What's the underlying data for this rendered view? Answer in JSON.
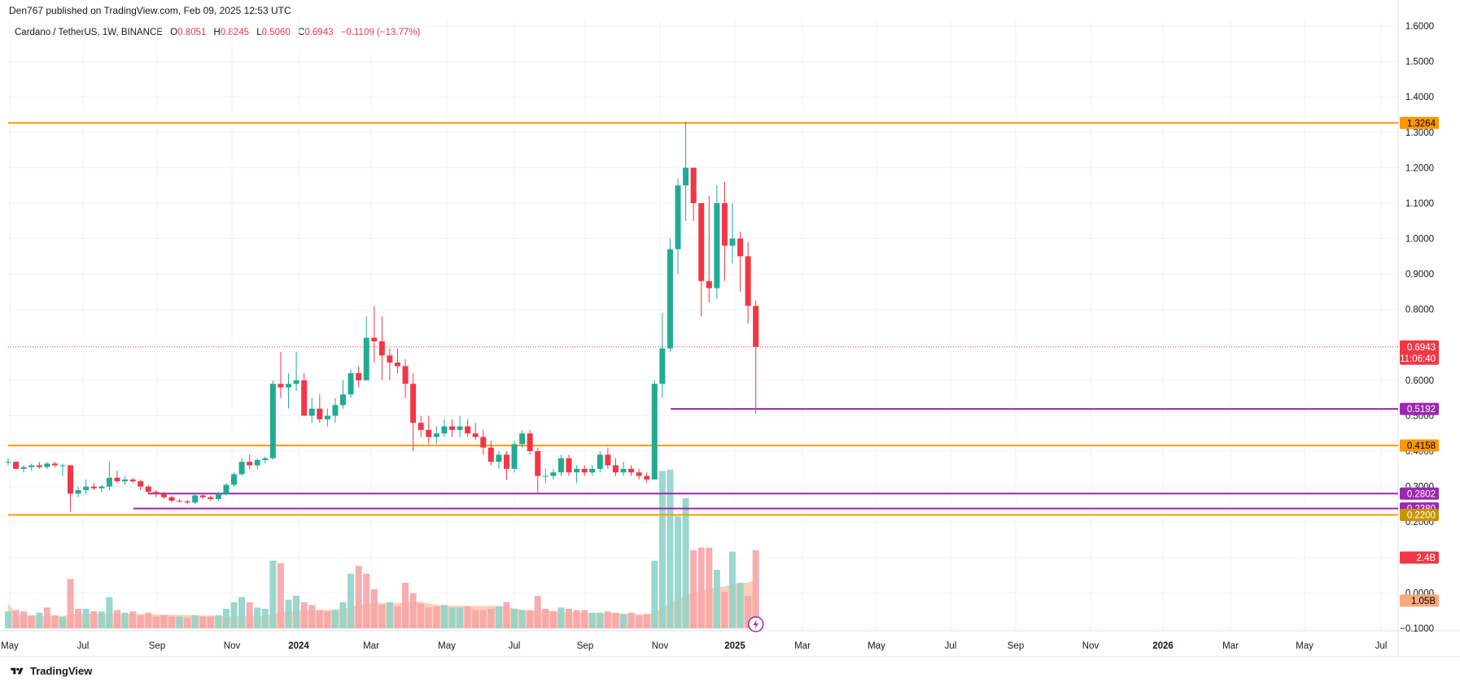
{
  "header": {
    "published": "Den767 published on TradingView.com, Feb 09, 2025 12:53 UTC"
  },
  "legend": {
    "symbol": "Cardano / TetherUS, 1W, BINANCE",
    "o_label": "O",
    "o_val": "0.8051",
    "h_label": "H",
    "h_val": "0.8245",
    "l_label": "L",
    "l_val": "0.5060",
    "c_label": "C",
    "c_val": "0.6943",
    "change": "−0.1109 (−13.77%)"
  },
  "footer": {
    "brand": "TradingView"
  },
  "colors": {
    "up": "#22ab94",
    "down": "#f23645",
    "up_vol": "#8fd3ca",
    "down_vol": "#f7a4a9",
    "avg_vol": "#f9a97a",
    "support_orange": "#ff9800",
    "support_purple": "#9c27b0",
    "grid": "#f0f3fa",
    "axis_text": "#131722"
  },
  "chart_data": {
    "type": "candlestick",
    "title": "Cardano / TetherUS, 1W, BINANCE",
    "y_axis": {
      "ticks": [
        "1.6000",
        "1.5000",
        "1.4000",
        "1.3000",
        "1.2000",
        "1.1000",
        "1.0000",
        "0.9000",
        "0.8000",
        "0.7000",
        "0.6000",
        "0.5000",
        "0.4000",
        "0.3000",
        "0.2000",
        "0.1000",
        "0.0000",
        "-0.1000"
      ],
      "tick_values": [
        1.6,
        1.5,
        1.4,
        1.3,
        1.2,
        1.1,
        1.0,
        0.9,
        0.8,
        0.7,
        0.6,
        0.5,
        0.4,
        0.3,
        0.2,
        0.1,
        0.0,
        -0.1
      ],
      "ylim": [
        -0.1,
        1.6
      ]
    },
    "x_axis": {
      "labels": [
        "May",
        "Jul",
        "Sep",
        "Nov",
        "2024",
        "Mar",
        "May",
        "Jul",
        "Sep",
        "Nov",
        "2025",
        "Mar",
        "May",
        "Jul",
        "Sep",
        "Nov",
        "2026",
        "Mar",
        "May",
        "Jul"
      ],
      "bold_labels": [
        "2024",
        "2025",
        "2026"
      ]
    },
    "candles": [
      [
        0.37,
        0.38,
        0.36,
        0.37
      ],
      [
        0.37,
        0.37,
        0.35,
        0.35
      ],
      [
        0.35,
        0.36,
        0.34,
        0.355
      ],
      [
        0.355,
        0.365,
        0.345,
        0.36
      ],
      [
        0.36,
        0.37,
        0.35,
        0.355
      ],
      [
        0.355,
        0.37,
        0.35,
        0.365
      ],
      [
        0.365,
        0.37,
        0.355,
        0.36
      ],
      [
        0.36,
        0.365,
        0.33,
        0.36
      ],
      [
        0.36,
        0.36,
        0.23,
        0.28
      ],
      [
        0.28,
        0.3,
        0.27,
        0.29
      ],
      [
        0.29,
        0.32,
        0.28,
        0.3
      ],
      [
        0.3,
        0.31,
        0.29,
        0.295
      ],
      [
        0.295,
        0.305,
        0.285,
        0.3
      ],
      [
        0.3,
        0.37,
        0.29,
        0.325
      ],
      [
        0.325,
        0.345,
        0.31,
        0.315
      ],
      [
        0.315,
        0.33,
        0.305,
        0.32
      ],
      [
        0.32,
        0.325,
        0.31,
        0.315
      ],
      [
        0.315,
        0.32,
        0.29,
        0.3
      ],
      [
        0.3,
        0.305,
        0.28,
        0.285
      ],
      [
        0.285,
        0.29,
        0.27,
        0.28
      ],
      [
        0.28,
        0.285,
        0.265,
        0.27
      ],
      [
        0.27,
        0.275,
        0.255,
        0.26
      ],
      [
        0.26,
        0.265,
        0.255,
        0.258
      ],
      [
        0.258,
        0.262,
        0.25,
        0.255
      ],
      [
        0.255,
        0.28,
        0.25,
        0.275
      ],
      [
        0.275,
        0.28,
        0.265,
        0.27
      ],
      [
        0.27,
        0.275,
        0.26,
        0.265
      ],
      [
        0.265,
        0.285,
        0.26,
        0.28
      ],
      [
        0.28,
        0.31,
        0.275,
        0.305
      ],
      [
        0.305,
        0.34,
        0.3,
        0.335
      ],
      [
        0.335,
        0.38,
        0.33,
        0.37
      ],
      [
        0.37,
        0.39,
        0.35,
        0.36
      ],
      [
        0.36,
        0.38,
        0.35,
        0.375
      ],
      [
        0.375,
        0.385,
        0.365,
        0.38
      ],
      [
        0.38,
        0.6,
        0.375,
        0.59
      ],
      [
        0.59,
        0.68,
        0.55,
        0.58
      ],
      [
        0.58,
        0.62,
        0.52,
        0.59
      ],
      [
        0.59,
        0.68,
        0.57,
        0.6
      ],
      [
        0.6,
        0.62,
        0.5,
        0.5
      ],
      [
        0.5,
        0.55,
        0.48,
        0.52
      ],
      [
        0.52,
        0.56,
        0.48,
        0.49
      ],
      [
        0.49,
        0.52,
        0.47,
        0.5
      ],
      [
        0.5,
        0.55,
        0.48,
        0.53
      ],
      [
        0.53,
        0.6,
        0.52,
        0.56
      ],
      [
        0.56,
        0.63,
        0.55,
        0.62
      ],
      [
        0.62,
        0.64,
        0.58,
        0.6
      ],
      [
        0.6,
        0.78,
        0.6,
        0.72
      ],
      [
        0.72,
        0.81,
        0.65,
        0.71
      ],
      [
        0.71,
        0.78,
        0.6,
        0.67
      ],
      [
        0.67,
        0.69,
        0.6,
        0.65
      ],
      [
        0.65,
        0.69,
        0.62,
        0.64
      ],
      [
        0.64,
        0.66,
        0.55,
        0.59
      ],
      [
        0.59,
        0.62,
        0.4,
        0.48
      ],
      [
        0.48,
        0.5,
        0.44,
        0.46
      ],
      [
        0.46,
        0.5,
        0.42,
        0.44
      ],
      [
        0.44,
        0.47,
        0.42,
        0.45
      ],
      [
        0.45,
        0.49,
        0.44,
        0.47
      ],
      [
        0.47,
        0.49,
        0.44,
        0.46
      ],
      [
        0.46,
        0.5,
        0.44,
        0.47
      ],
      [
        0.47,
        0.49,
        0.44,
        0.45
      ],
      [
        0.45,
        0.48,
        0.43,
        0.44
      ],
      [
        0.44,
        0.46,
        0.39,
        0.41
      ],
      [
        0.41,
        0.43,
        0.36,
        0.37
      ],
      [
        0.37,
        0.4,
        0.35,
        0.39
      ],
      [
        0.39,
        0.4,
        0.32,
        0.35
      ],
      [
        0.35,
        0.43,
        0.34,
        0.42
      ],
      [
        0.42,
        0.46,
        0.41,
        0.45
      ],
      [
        0.45,
        0.46,
        0.39,
        0.4
      ],
      [
        0.4,
        0.41,
        0.28,
        0.33
      ],
      [
        0.33,
        0.35,
        0.31,
        0.33
      ],
      [
        0.33,
        0.35,
        0.32,
        0.34
      ],
      [
        0.34,
        0.39,
        0.33,
        0.38
      ],
      [
        0.38,
        0.39,
        0.33,
        0.34
      ],
      [
        0.34,
        0.36,
        0.31,
        0.35
      ],
      [
        0.35,
        0.36,
        0.33,
        0.34
      ],
      [
        0.34,
        0.36,
        0.33,
        0.35
      ],
      [
        0.35,
        0.4,
        0.34,
        0.39
      ],
      [
        0.39,
        0.41,
        0.35,
        0.36
      ],
      [
        0.36,
        0.38,
        0.33,
        0.34
      ],
      [
        0.34,
        0.37,
        0.33,
        0.35
      ],
      [
        0.35,
        0.36,
        0.33,
        0.34
      ],
      [
        0.34,
        0.35,
        0.32,
        0.33
      ],
      [
        0.33,
        0.34,
        0.31,
        0.32
      ],
      [
        0.32,
        0.6,
        0.32,
        0.59
      ],
      [
        0.59,
        0.79,
        0.55,
        0.69
      ],
      [
        0.69,
        1.0,
        0.68,
        0.97
      ],
      [
        0.97,
        1.17,
        0.9,
        1.15
      ],
      [
        1.15,
        1.33,
        1.05,
        1.2
      ],
      [
        1.2,
        1.2,
        1.05,
        1.1
      ],
      [
        1.1,
        1.1,
        0.78,
        0.88
      ],
      [
        0.88,
        1.12,
        0.82,
        0.86
      ],
      [
        0.86,
        1.15,
        0.83,
        1.1
      ],
      [
        1.1,
        1.16,
        0.88,
        0.98
      ],
      [
        0.98,
        1.1,
        0.93,
        1.0
      ],
      [
        1.0,
        1.02,
        0.85,
        0.95
      ],
      [
        0.95,
        0.99,
        0.76,
        0.81
      ],
      [
        0.81,
        0.8245,
        0.506,
        0.6943
      ]
    ],
    "volumes": [
      [
        0.13,
        1
      ],
      [
        0.14,
        0
      ],
      [
        0.13,
        0
      ],
      [
        0.1,
        0
      ],
      [
        0.12,
        1
      ],
      [
        0.16,
        0
      ],
      [
        0.1,
        0
      ],
      [
        0.09,
        1
      ],
      [
        0.38,
        0
      ],
      [
        0.15,
        0
      ],
      [
        0.15,
        1
      ],
      [
        0.13,
        0
      ],
      [
        0.13,
        1
      ],
      [
        0.24,
        1
      ],
      [
        0.14,
        0
      ],
      [
        0.12,
        1
      ],
      [
        0.13,
        0
      ],
      [
        0.1,
        0
      ],
      [
        0.12,
        0
      ],
      [
        0.09,
        0
      ],
      [
        0.1,
        0
      ],
      [
        0.09,
        0
      ],
      [
        0.09,
        1
      ],
      [
        0.08,
        0
      ],
      [
        0.1,
        1
      ],
      [
        0.09,
        0
      ],
      [
        0.09,
        0
      ],
      [
        0.1,
        1
      ],
      [
        0.15,
        1
      ],
      [
        0.2,
        1
      ],
      [
        0.24,
        1
      ],
      [
        0.2,
        0
      ],
      [
        0.16,
        1
      ],
      [
        0.15,
        1
      ],
      [
        0.52,
        1
      ],
      [
        0.5,
        0
      ],
      [
        0.22,
        1
      ],
      [
        0.25,
        1
      ],
      [
        0.2,
        0
      ],
      [
        0.18,
        0
      ],
      [
        0.14,
        0
      ],
      [
        0.13,
        0
      ],
      [
        0.14,
        1
      ],
      [
        0.2,
        1
      ],
      [
        0.42,
        1
      ],
      [
        0.48,
        0
      ],
      [
        0.42,
        0
      ],
      [
        0.3,
        0
      ],
      [
        0.18,
        0
      ],
      [
        0.2,
        1
      ],
      [
        0.17,
        0
      ],
      [
        0.35,
        0
      ],
      [
        0.27,
        0
      ],
      [
        0.19,
        0
      ],
      [
        0.16,
        0
      ],
      [
        0.17,
        0
      ],
      [
        0.18,
        1
      ],
      [
        0.16,
        1
      ],
      [
        0.16,
        1
      ],
      [
        0.17,
        0
      ],
      [
        0.14,
        0
      ],
      [
        0.14,
        0
      ],
      [
        0.15,
        0
      ],
      [
        0.17,
        1
      ],
      [
        0.2,
        0
      ],
      [
        0.15,
        1
      ],
      [
        0.14,
        1
      ],
      [
        0.14,
        0
      ],
      [
        0.25,
        0
      ],
      [
        0.15,
        0
      ],
      [
        0.13,
        0
      ],
      [
        0.16,
        1
      ],
      [
        0.15,
        0
      ],
      [
        0.14,
        0
      ],
      [
        0.14,
        0
      ],
      [
        0.12,
        1
      ],
      [
        0.12,
        1
      ],
      [
        0.13,
        0
      ],
      [
        0.12,
        0
      ],
      [
        0.11,
        1
      ],
      [
        0.12,
        0
      ],
      [
        0.1,
        0
      ],
      [
        0.11,
        0
      ],
      [
        0.52,
        1
      ],
      [
        1.21,
        1
      ],
      [
        1.22,
        1
      ],
      [
        0.86,
        1
      ],
      [
        1.0,
        1
      ],
      [
        0.6,
        0
      ],
      [
        0.62,
        0
      ],
      [
        0.62,
        0
      ],
      [
        0.45,
        1
      ],
      [
        0.28,
        0
      ],
      [
        0.59,
        1
      ],
      [
        0.35,
        1
      ],
      [
        0.25,
        0
      ],
      [
        0.6,
        0
      ]
    ],
    "levels": [
      {
        "value": 1.3264,
        "label": "1.3264",
        "color": "#ff9800"
      },
      {
        "value": 0.5192,
        "label": "0.5192",
        "color": "#9c27b0"
      },
      {
        "value": 0.4158,
        "label": "0.4158",
        "color": "#ff9800"
      },
      {
        "value": 0.2802,
        "label": "0.2802",
        "color": "#9c27b0"
      },
      {
        "value": 0.238,
        "label": "0.2380",
        "color": "#9c27b0"
      },
      {
        "value": 0.22,
        "label": "0.2200",
        "color": "#ff9800"
      }
    ],
    "last_price": {
      "value": 0.6943,
      "label": "0.6943",
      "countdown": "11:06:40"
    },
    "volume_badges": {
      "last": "2.4B",
      "average": "1.05B"
    }
  }
}
